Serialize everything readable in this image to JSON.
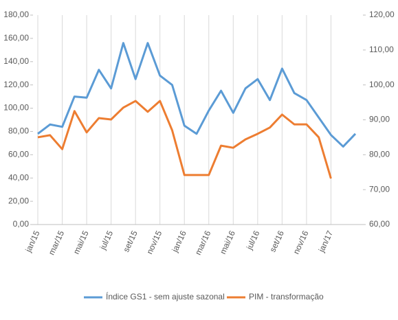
{
  "chart_data": {
    "type": "line",
    "categories": [
      "jan/15",
      null,
      "mar/15",
      null,
      "mai/15",
      null,
      "jul/15",
      null,
      "set/15",
      null,
      "nov/15",
      null,
      "jan/16",
      null,
      "mar/16",
      null,
      "mai/16",
      null,
      "jul/16",
      null,
      "set/16",
      null,
      "nov/16",
      null,
      "jan/17",
      null,
      null
    ],
    "series": [
      {
        "name": "Índice GS1 - sem ajuste sazonal",
        "color": "#5b9bd5",
        "values": [
          78,
          86,
          84,
          110,
          109,
          133,
          117,
          156,
          125,
          156,
          128,
          120,
          85,
          78,
          98,
          115,
          96,
          117,
          125,
          107,
          134,
          113,
          107,
          92,
          77,
          67,
          78
        ]
      },
      {
        "name": "PIM - transformação",
        "color": "#ed7d31",
        "axis": "y2",
        "values": [
          85,
          85.6,
          81.6,
          92.5,
          86.4,
          90.5,
          90.1,
          93.5,
          95.4,
          92.3,
          95.4,
          87,
          74.2,
          74.2,
          74.2,
          82.6,
          82,
          84.4,
          86,
          87.8,
          91.5,
          88.7,
          88.7,
          85,
          73.2,
          null,
          null
        ]
      }
    ],
    "ylim": [
      0,
      180
    ],
    "yticks": [
      {
        "value": 0,
        "label": "0,00"
      },
      {
        "value": 20,
        "label": "20,00"
      },
      {
        "value": 40,
        "label": "40,00"
      },
      {
        "value": 60,
        "label": "60,00"
      },
      {
        "value": 80,
        "label": "80,00"
      },
      {
        "value": 100,
        "label": "100,00"
      },
      {
        "value": 120,
        "label": "120,00"
      },
      {
        "value": 140,
        "label": "140,00"
      },
      {
        "value": 160,
        "label": "160,00"
      },
      {
        "value": 180,
        "label": "180,00"
      }
    ],
    "y2lim": [
      60,
      120
    ],
    "y2ticks": [
      {
        "value": 60,
        "label": "60,00"
      },
      {
        "value": 70,
        "label": "70,00"
      },
      {
        "value": 80,
        "label": "80,00"
      },
      {
        "value": 90,
        "label": "90,00"
      },
      {
        "value": 100,
        "label": "100,00"
      },
      {
        "value": 110,
        "label": "110,00"
      },
      {
        "value": 120,
        "label": "120,00"
      }
    ],
    "grid": true,
    "legend": "bottom"
  }
}
